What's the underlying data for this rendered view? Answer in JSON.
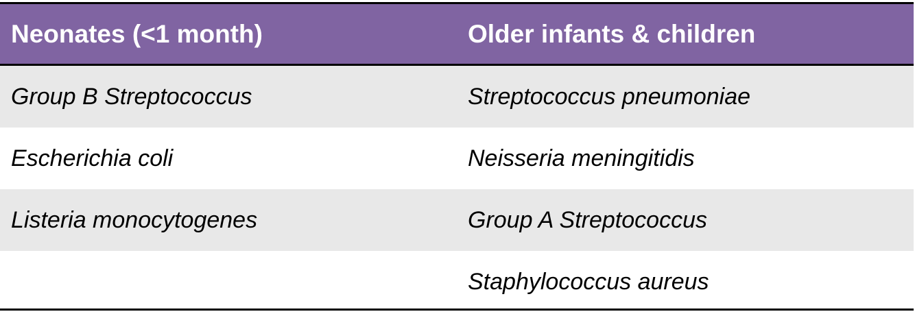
{
  "columns": [
    {
      "header": "Neonates (<1 month)",
      "items": [
        "Group B Streptococcus",
        "Escherichia coli",
        "Listeria monocytogenes"
      ]
    },
    {
      "header": "Older infants & children",
      "items": [
        "Streptococcus pneumoniae",
        "Neisseria meningitidis",
        "Group A Streptococcus",
        "Staphylococcus aureus"
      ]
    }
  ]
}
